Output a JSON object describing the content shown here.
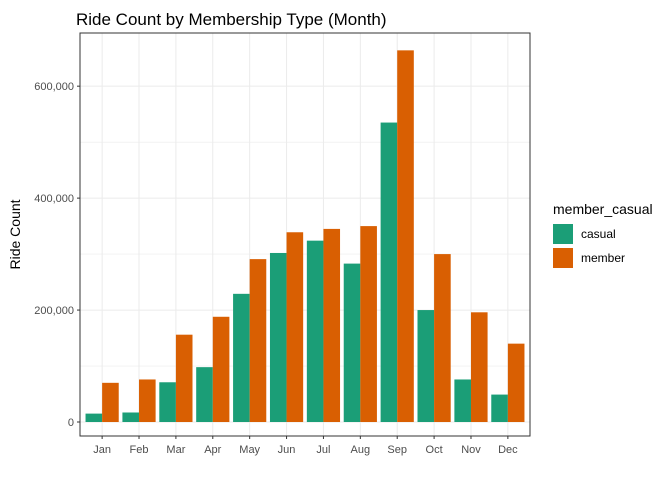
{
  "chart_data": {
    "type": "bar",
    "title": "Ride Count by Membership Type (Month)",
    "xlabel": "",
    "ylabel": "Ride Count",
    "categories": [
      "Jan",
      "Feb",
      "Mar",
      "Apr",
      "May",
      "Jun",
      "Jul",
      "Aug",
      "Sep",
      "Oct",
      "Nov",
      "Dec"
    ],
    "series": [
      {
        "name": "casual",
        "color": "#1b9e77",
        "values": [
          15000,
          17000,
          71000,
          98000,
          229000,
          302000,
          324000,
          283000,
          535000,
          200000,
          76000,
          49000
        ]
      },
      {
        "name": "member",
        "color": "#d95f02",
        "values": [
          70000,
          76000,
          156000,
          188000,
          291000,
          339000,
          345000,
          350000,
          664000,
          300000,
          196000,
          140000
        ]
      }
    ],
    "ylim": [
      -25000,
      695000
    ],
    "yticks": [
      0,
      200000,
      400000,
      600000
    ],
    "ytick_labels": [
      "0",
      "200,000",
      "400,000",
      "600,000"
    ],
    "legend": {
      "title": "member_casual",
      "position": "right"
    },
    "grid": true
  }
}
